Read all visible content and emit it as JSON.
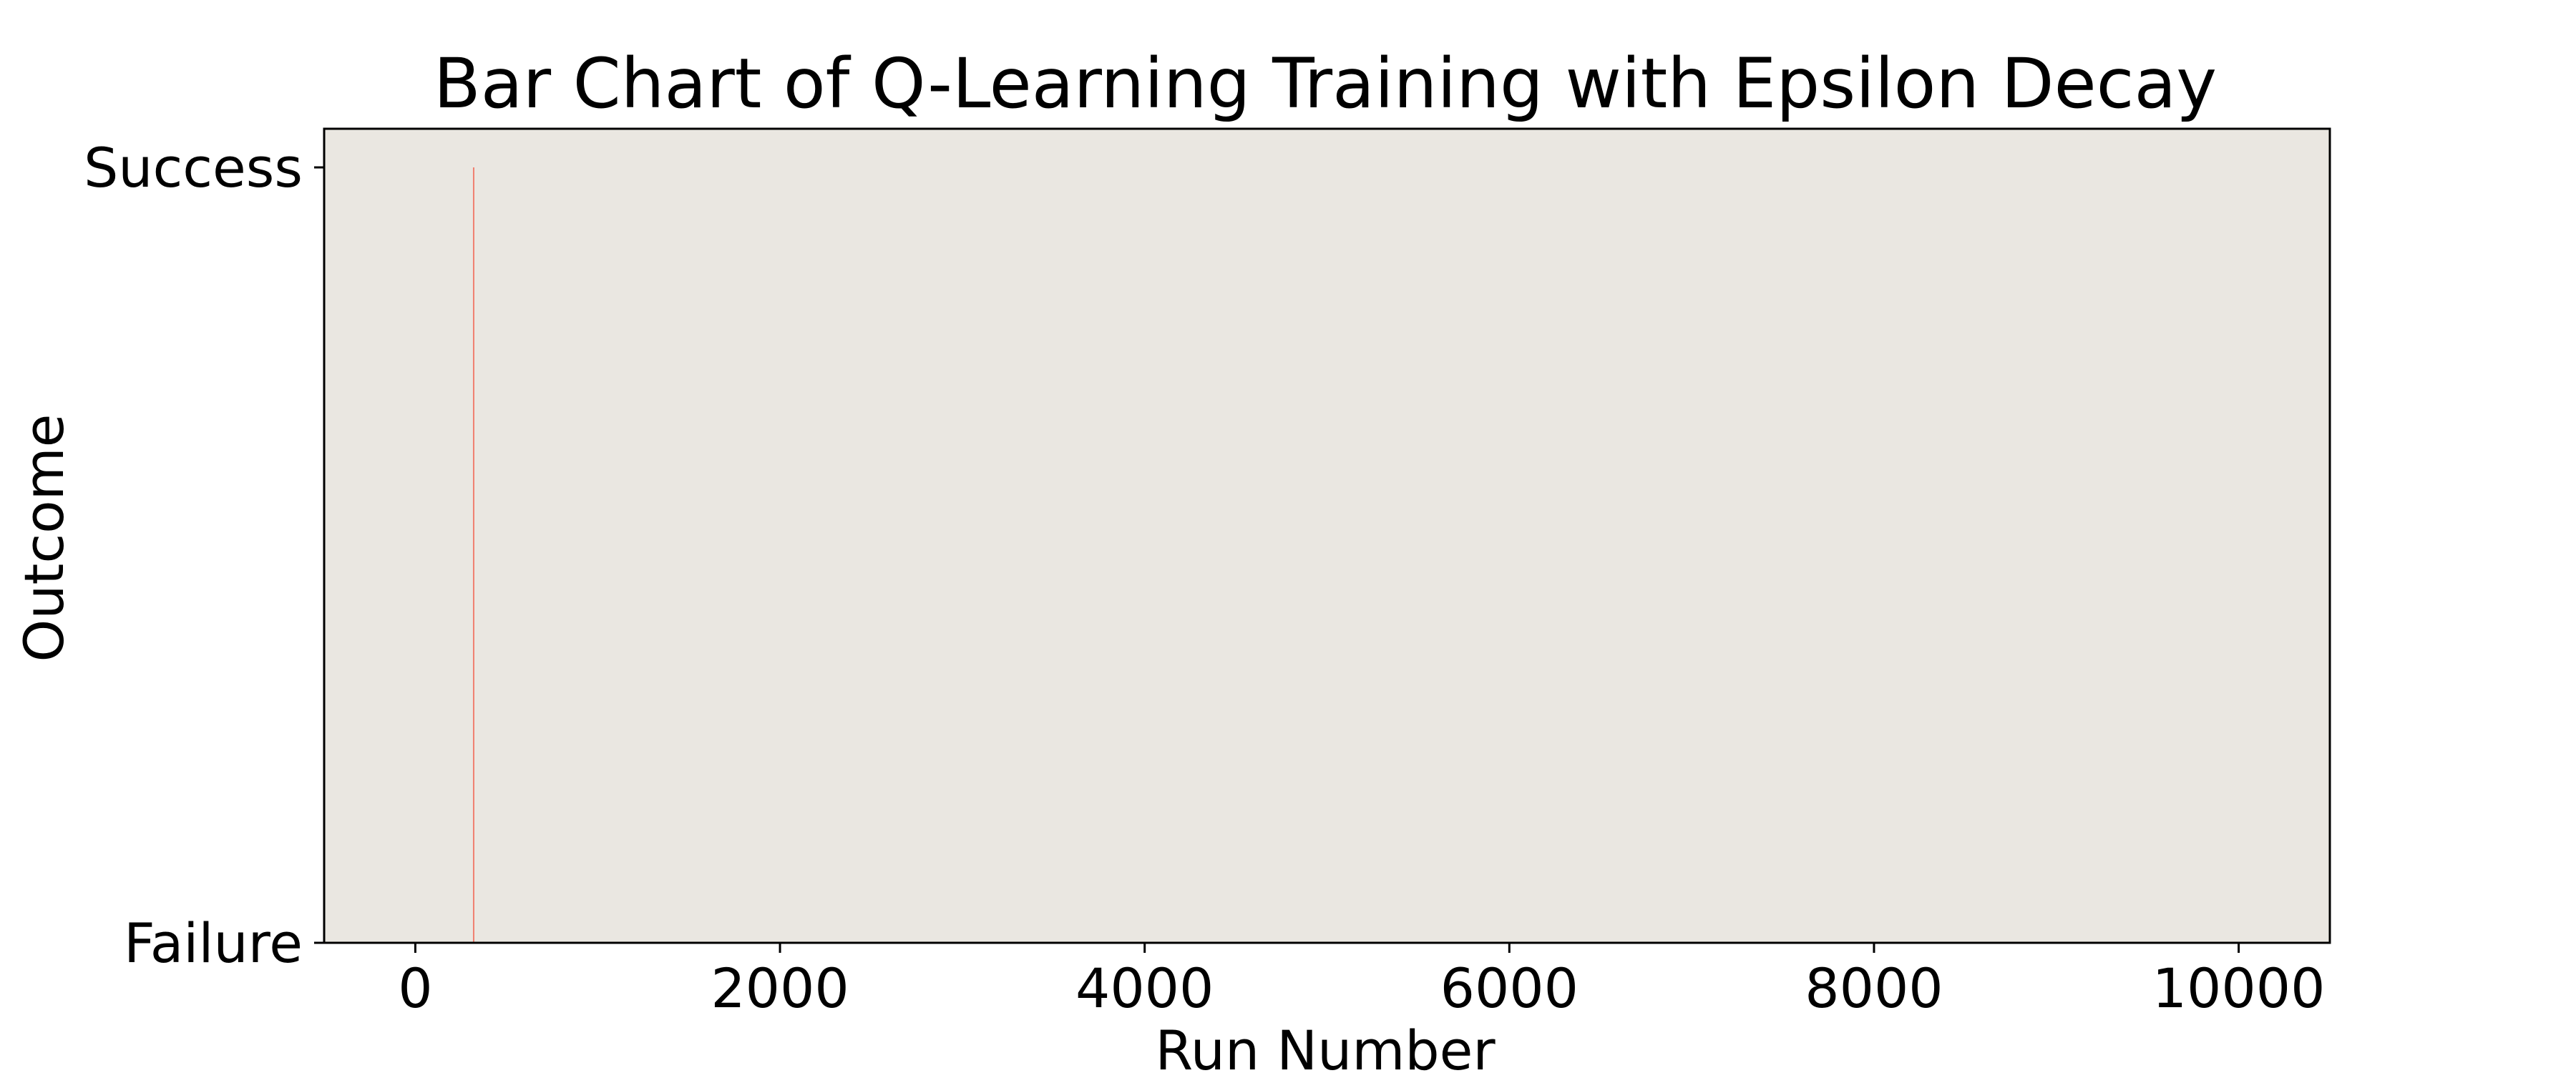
{
  "chart_data": {
    "type": "bar",
    "title": "Bar Chart of Q-Learning Training with Epsilon Decay",
    "xlabel": "Run Number",
    "ylabel": "Outcome",
    "xlim": [
      -500,
      10500
    ],
    "ylim": [
      0,
      1
    ],
    "x_ticks": [
      0,
      2000,
      4000,
      6000,
      8000,
      10000
    ],
    "y_ticks": [
      {
        "value": 0,
        "label": "Failure"
      },
      {
        "value": 1,
        "label": "Success"
      }
    ],
    "bars": [
      {
        "x": 320,
        "value": 1
      }
    ],
    "grid": false,
    "legend": "none",
    "plot_background": "#EAE7E1",
    "bar_color": "#F08070"
  }
}
